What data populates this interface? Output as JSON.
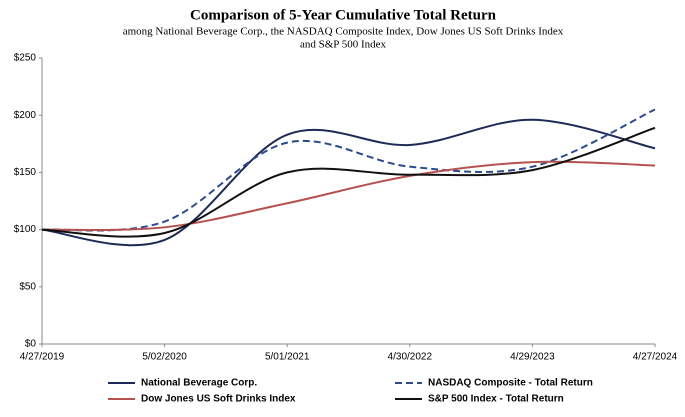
{
  "chart_data": {
    "type": "line",
    "title": "Comparison of 5-Year Cumulative Total Return",
    "subtitle": [
      "among National Beverage Corp., the NASDAQ Composite Index, Dow Jones US Soft Drinks Index",
      "and S&P 500 Index"
    ],
    "categories": [
      "4/27/2019",
      "5/02/2020",
      "5/01/2021",
      "4/30/2022",
      "4/29/2023",
      "4/27/2024"
    ],
    "ylim": [
      0,
      250
    ],
    "yticks": [
      {
        "value": 0,
        "label": "$0"
      },
      {
        "value": 50,
        "label": "$50"
      },
      {
        "value": 100,
        "label": "$100"
      },
      {
        "value": 150,
        "label": "$150"
      },
      {
        "value": 200,
        "label": "$200"
      },
      {
        "value": 250,
        "label": "$250"
      }
    ],
    "grid": false,
    "legend": "bottom",
    "series": [
      {
        "name": "National Beverage Corp.",
        "color": "#1f2b57",
        "line_style": "solid",
        "values": [
          100,
          91,
          183,
          174,
          196,
          171
        ]
      },
      {
        "name": "NASDAQ Composite - Total Return",
        "color": "#2c4a8c",
        "line_style": "dashed",
        "values": [
          100,
          107,
          176,
          155,
          155,
          205
        ]
      },
      {
        "name": "Dow Jones US Soft Drinks Index",
        "color": "#b5514f",
        "line_style": "solid",
        "values": [
          100,
          102,
          123,
          147,
          159,
          156
        ]
      },
      {
        "name": "S&P 500 Index - Total Return",
        "color": "#111111",
        "line_style": "solid",
        "values": [
          100,
          97,
          150,
          148,
          152,
          189
        ]
      }
    ]
  }
}
